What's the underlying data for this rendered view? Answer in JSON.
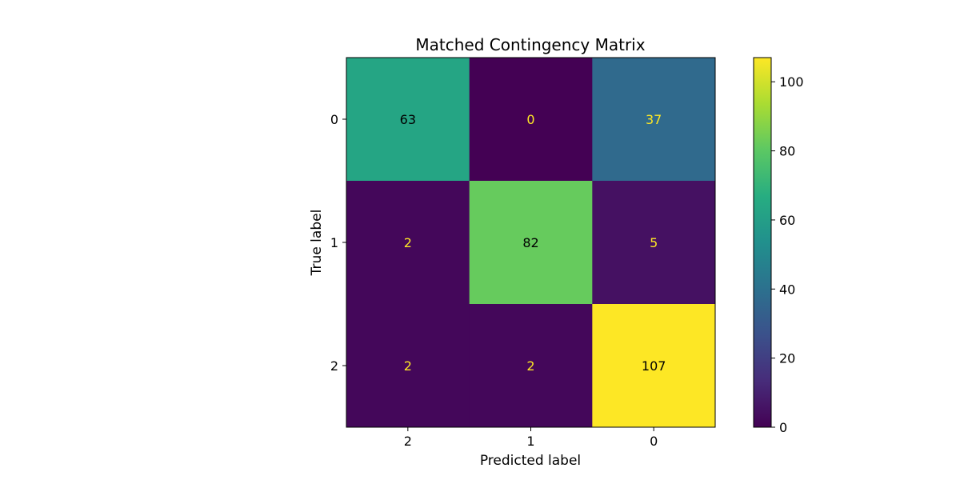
{
  "chart_data": {
    "type": "heatmap",
    "title": "Matched Contingency Matrix",
    "xlabel": "Predicted label",
    "ylabel": "True label",
    "x_categories": [
      "2",
      "1",
      "0"
    ],
    "y_categories": [
      "0",
      "1",
      "2"
    ],
    "values": [
      [
        63,
        0,
        37
      ],
      [
        2,
        82,
        5
      ],
      [
        2,
        2,
        107
      ]
    ],
    "colormap": "viridis",
    "colorbar": {
      "range": [
        0,
        107
      ],
      "ticks": [
        0,
        20,
        40,
        60,
        80,
        100
      ]
    },
    "text_colors": {
      "on_dark": "#fde725",
      "on_light": "#000000"
    },
    "grid": false
  }
}
